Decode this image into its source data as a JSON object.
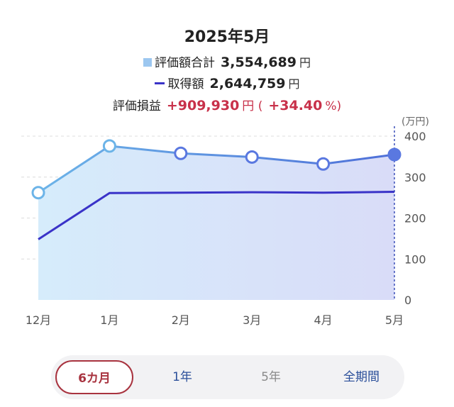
{
  "header": {
    "title": "2025年5月",
    "valuation_label": "評価額合計",
    "valuation_value": "3,554,689",
    "valuation_unit": "円",
    "acquisition_label": "取得額",
    "acquisition_value": "2,644,759",
    "acquisition_unit": "円",
    "pl_label": "評価損益",
    "pl_value": "+909,930",
    "pl_unit": "円",
    "pl_paren_open": "(",
    "pl_percent": "+34.40",
    "pl_percent_unit": "%)"
  },
  "colors": {
    "valuation_line": "#5f9fe3",
    "acquisition_line": "#3a33c8",
    "gain": "#c8314a",
    "active_tab": "#a8333f"
  },
  "chart_data": {
    "type": "area",
    "x": [
      "12月",
      "1月",
      "2月",
      "3月",
      "4月",
      "5月"
    ],
    "ylabel": "(万円)",
    "ylim": [
      0,
      400
    ],
    "yticks": [
      "0",
      "100",
      "200",
      "300",
      "400"
    ],
    "grid": true,
    "series": [
      {
        "name": "評価額合計",
        "values": [
          262,
          376,
          358,
          349,
          332,
          355
        ]
      },
      {
        "name": "取得額",
        "values": [
          148,
          261,
          262,
          263,
          262,
          264
        ]
      }
    ]
  },
  "periods": [
    {
      "label": "6カ月",
      "state": "active"
    },
    {
      "label": "1年",
      "state": "blue"
    },
    {
      "label": "5年",
      "state": "gray"
    },
    {
      "label": "全期間",
      "state": "blue"
    }
  ]
}
